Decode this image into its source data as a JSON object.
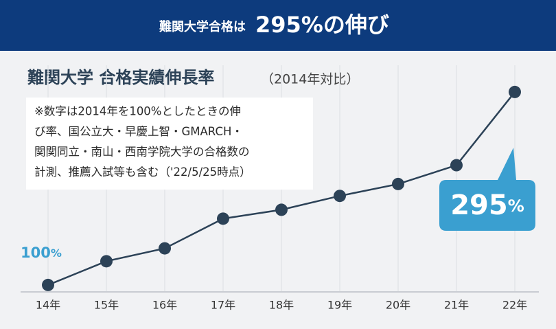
{
  "header": {
    "lead": "難関大学合格は",
    "highlight": "295%の伸び"
  },
  "chart_data": {
    "type": "line",
    "title": "難関大学 合格実績伸長率",
    "subtitle": "（2014年対比）",
    "note": [
      "※数字は2014年を100%としたときの伸",
      "び率、国公立大・早慶上智・GMARCH・",
      "関関同立・南山・西南学院大学の合格数の",
      "計測、推薦入試等も含む（'22/5/25時点）"
    ],
    "categories": [
      "14年",
      "15年",
      "16年",
      "17年",
      "18年",
      "19年",
      "20年",
      "21年",
      "22年"
    ],
    "values": [
      100,
      124,
      137,
      167,
      176,
      190,
      202,
      221,
      295
    ],
    "value_labels": [
      "100%",
      null,
      null,
      null,
      null,
      null,
      null,
      null,
      "295%"
    ],
    "color": "#2c4257",
    "label_color": "#3a9fd0",
    "ylim": [
      93,
      305
    ],
    "grid": true
  }
}
